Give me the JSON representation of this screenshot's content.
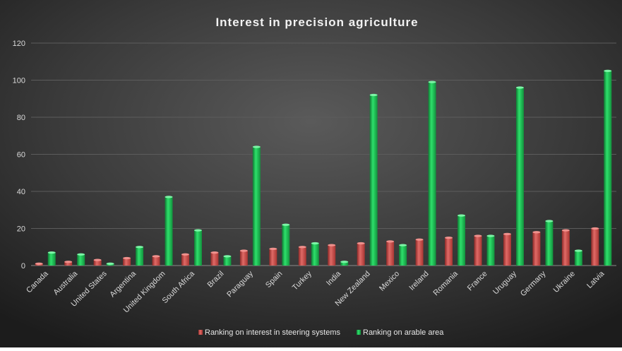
{
  "chart_data": {
    "type": "bar",
    "title": "Interest in precision agriculture",
    "xlabel": "",
    "ylabel": "",
    "ylim": [
      0,
      120
    ],
    "yticks": [
      0,
      20,
      40,
      60,
      80,
      100,
      120
    ],
    "grid": true,
    "legend_position": "bottom",
    "categories": [
      "Canada",
      "Australia",
      "United States",
      "Argentina",
      "United Kingdom",
      "South Africa",
      "Brazil",
      "Paraguay",
      "Spain",
      "Turkey",
      "India",
      "New Zealand",
      "Mexico",
      "Ireland",
      "Romania",
      "France",
      "Uruguay",
      "Germany",
      "Ukraine",
      "Latvia"
    ],
    "series": [
      {
        "name": "Ranking on interest in steering systems",
        "color": "#d9534f",
        "values": [
          1,
          2,
          3,
          4,
          5,
          6,
          7,
          8,
          9,
          10,
          11,
          12,
          13,
          14,
          15,
          16,
          17,
          18,
          19,
          20
        ]
      },
      {
        "name": "Ranking on arable area",
        "color": "#22c55e",
        "values": [
          7,
          6,
          1,
          10,
          37,
          19,
          5,
          64,
          22,
          12,
          2,
          92,
          11,
          99,
          27,
          16,
          96,
          24,
          8,
          105
        ]
      }
    ]
  }
}
